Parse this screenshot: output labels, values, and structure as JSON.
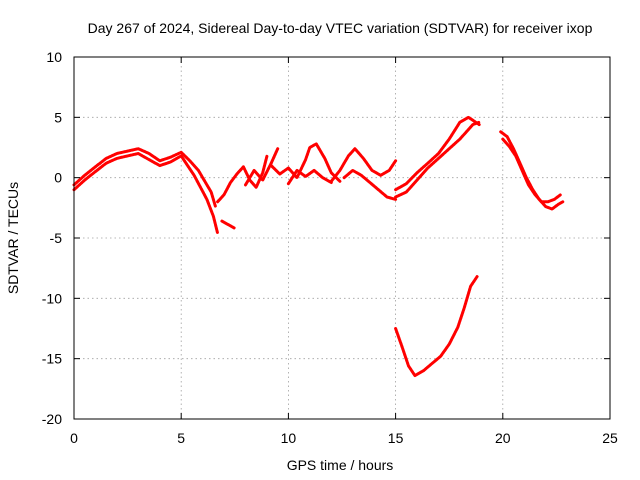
{
  "chart_data": {
    "type": "line",
    "title": "Day 267 of 2024, Sidereal Day-to-day VTEC variation (SDTVAR) for receiver ixop",
    "xlabel": "GPS time / hours",
    "ylabel": "SDTVAR / TECUs",
    "xlim": [
      0,
      25
    ],
    "ylim": [
      -20,
      10
    ],
    "xticks": [
      0,
      5,
      10,
      15,
      20,
      25
    ],
    "yticks": [
      -20,
      -15,
      -10,
      -5,
      0,
      5,
      10
    ],
    "grid": true,
    "series_color": "#ff0000",
    "series": [
      {
        "name": "main-track-1",
        "x": [
          0,
          0.5,
          1,
          1.5,
          2,
          2.5,
          3,
          3.5,
          4,
          4.5,
          5,
          5.3,
          5.6,
          5.9,
          6.2,
          6.5,
          6.7
        ],
        "y": [
          -1,
          -0.2,
          0.5,
          1.2,
          1.6,
          1.8,
          2.0,
          1.5,
          1.0,
          1.3,
          1.8,
          1.0,
          0.2,
          -0.8,
          -1.8,
          -3.2,
          -4.6
        ]
      },
      {
        "name": "main-track-2",
        "x": [
          0,
          0.5,
          1,
          1.5,
          2,
          2.5,
          3,
          3.5,
          4,
          4.5,
          5,
          5.4,
          5.8,
          6.1,
          6.4,
          6.6
        ],
        "y": [
          -0.6,
          0.2,
          0.9,
          1.6,
          2.0,
          2.2,
          2.4,
          2.0,
          1.4,
          1.7,
          2.1,
          1.4,
          0.6,
          -0.3,
          -1.2,
          -2.4
        ]
      },
      {
        "name": "segment-6.5-9",
        "x": [
          6.7,
          7.0,
          7.3,
          7.6,
          7.9,
          8.2,
          8.5,
          8.8,
          9.0
        ],
        "y": [
          -2.0,
          -1.4,
          -0.4,
          0.3,
          0.9,
          -0.2,
          -0.8,
          0.4,
          1.8
        ]
      },
      {
        "name": "segment-7-7.6",
        "x": [
          6.9,
          7.2,
          7.5
        ],
        "y": [
          -3.6,
          -3.9,
          -4.2
        ]
      },
      {
        "name": "segment-8-9.5",
        "x": [
          8.0,
          8.4,
          8.8,
          9.2,
          9.5
        ],
        "y": [
          -0.6,
          0.6,
          -0.2,
          1.2,
          2.4
        ]
      },
      {
        "name": "segment-9-12.5",
        "x": [
          9.2,
          9.6,
          10.0,
          10.4,
          10.8,
          11.0,
          11.3,
          11.7,
          12.0,
          12.4
        ],
        "y": [
          1.0,
          0.3,
          0.8,
          0.0,
          1.5,
          2.5,
          2.8,
          1.6,
          0.4,
          -0.3
        ]
      },
      {
        "name": "segment-10-12",
        "x": [
          10.0,
          10.4,
          10.8,
          11.2,
          11.6,
          12.0
        ],
        "y": [
          -0.5,
          0.6,
          0.1,
          0.6,
          0.0,
          -0.4
        ]
      },
      {
        "name": "segment-12-15",
        "x": [
          12.0,
          12.4,
          12.8,
          13.1,
          13.5,
          13.9,
          14.3,
          14.7,
          15.0
        ],
        "y": [
          -0.3,
          0.6,
          1.8,
          2.4,
          1.6,
          0.6,
          0.2,
          0.6,
          1.4
        ]
      },
      {
        "name": "segment-12.5-15",
        "x": [
          12.6,
          13.0,
          13.4,
          13.8,
          14.2,
          14.6,
          15.0
        ],
        "y": [
          0.0,
          0.6,
          0.2,
          -0.4,
          -1.0,
          -1.6,
          -1.8
        ]
      },
      {
        "name": "segment-15-18.5",
        "x": [
          15.0,
          15.5,
          16.0,
          16.5,
          17.0,
          17.5,
          18.0,
          18.3,
          18.6,
          18.9
        ],
        "y": [
          -1.6,
          -1.2,
          -0.2,
          0.8,
          1.6,
          2.4,
          3.2,
          3.8,
          4.4,
          4.6
        ]
      },
      {
        "name": "segment-15-18.5-b",
        "x": [
          15.0,
          15.5,
          16.0,
          16.5,
          17.0,
          17.5,
          18.0,
          18.4,
          18.9
        ],
        "y": [
          -1.0,
          -0.5,
          0.4,
          1.2,
          2.0,
          3.2,
          4.6,
          5.0,
          4.4
        ]
      },
      {
        "name": "segment-19.9-22.8",
        "x": [
          19.9,
          20.2,
          20.5,
          20.8,
          21.1,
          21.4,
          21.7,
          22.0,
          22.3,
          22.6,
          22.8
        ],
        "y": [
          3.8,
          3.4,
          2.4,
          1.2,
          0.0,
          -1.0,
          -1.8,
          -2.4,
          -2.6,
          -2.2,
          -2.0
        ]
      },
      {
        "name": "segment-19.9-22.8-b",
        "x": [
          20.0,
          20.3,
          20.6,
          20.9,
          21.2,
          21.5,
          21.8,
          22.1,
          22.4,
          22.7
        ],
        "y": [
          3.2,
          2.6,
          1.8,
          0.6,
          -0.6,
          -1.4,
          -2.0,
          -2.0,
          -1.8,
          -1.4
        ]
      },
      {
        "name": "lower-track",
        "x": [
          15.0,
          15.3,
          15.6,
          15.9,
          16.3,
          16.7,
          17.1,
          17.5,
          17.9,
          18.2,
          18.5,
          18.8
        ],
        "y": [
          -12.5,
          -14.0,
          -15.6,
          -16.4,
          -16.0,
          -15.4,
          -14.8,
          -13.8,
          -12.4,
          -10.8,
          -9.0,
          -8.2
        ]
      }
    ]
  }
}
